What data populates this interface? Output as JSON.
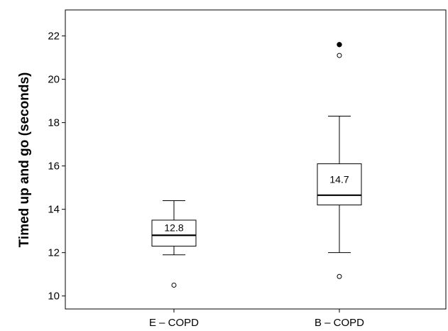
{
  "chart_data": {
    "type": "boxplot",
    "ylabel": "Timed up and go (seconds)",
    "xlabel": "",
    "ylim": [
      9.4,
      23.2
    ],
    "yticks": [
      10,
      12,
      14,
      16,
      18,
      20,
      22
    ],
    "grid": false,
    "categories": [
      "E – COPD",
      "B – COPD"
    ],
    "boxes": [
      {
        "category": "E – COPD",
        "whisker_low": 11.9,
        "q1": 12.3,
        "median": 12.8,
        "q3": 13.5,
        "whisker_high": 14.4,
        "median_label": "12.8",
        "outliers": [
          10.5
        ],
        "extremes": []
      },
      {
        "category": "B – COPD",
        "whisker_low": 12.0,
        "q1": 14.2,
        "median": 14.65,
        "q3": 16.1,
        "whisker_high": 18.3,
        "median_label": "14.7",
        "outliers": [
          21.1,
          10.9
        ],
        "extremes": [
          21.6
        ]
      }
    ]
  }
}
